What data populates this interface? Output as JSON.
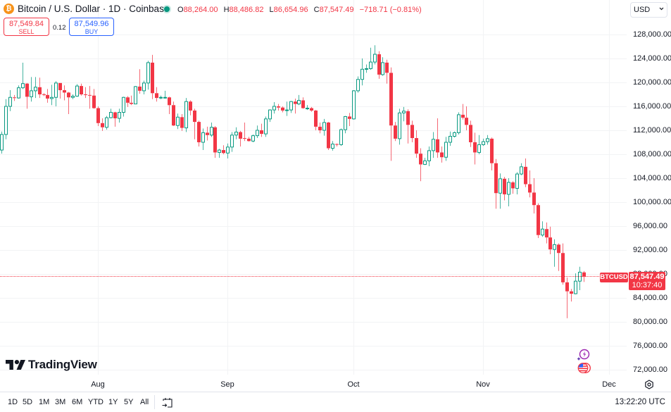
{
  "header": {
    "symbol_icon": "bitcoin-icon",
    "symbol_glyph": "₿",
    "title": "Bitcoin / U.S. Dollar · 1D · Coinbase",
    "market_status_icon": "market-open-dot-icon",
    "ohlc": {
      "o_label": "O",
      "o": "88,264.00",
      "h_label": "H",
      "h": "88,486.82",
      "l_label": "L",
      "l": "86,654.96",
      "c_label": "C",
      "c": "87,547.49",
      "change": "−718.71 (−0.81%)"
    }
  },
  "trade": {
    "sell_price": "87,549.84",
    "sell_label": "SELL",
    "spread": "0.12",
    "buy_price": "87,549.96",
    "buy_label": "BUY"
  },
  "currency": {
    "selected": "USD",
    "chevron": "⌄"
  },
  "price_axis": {
    "labels": [
      "128,000.00",
      "124,000.00",
      "120,000.00",
      "116,000.00",
      "112,000.00",
      "108,000.00",
      "104,000.00",
      "100,000.00",
      "96,000.00",
      "92,000.00",
      "88,000.00",
      "84,000.00",
      "80,000.00",
      "76,000.00",
      "72,000.00"
    ]
  },
  "last_price": {
    "symbol_tag": "BTCUSD",
    "price": "87,547.49",
    "countdown": "10:37:40"
  },
  "time_axis": {
    "labels": [
      "Aug",
      "Sep",
      "Oct",
      "Nov",
      "Dec"
    ],
    "settings_icon": "gear-icon"
  },
  "logo": {
    "text": "TradingView"
  },
  "overlay_icons": [
    "lightning-icon",
    "us-flag-icon"
  ],
  "bottom_toolbar": {
    "ranges": [
      "1D",
      "5D",
      "1M",
      "3M",
      "6M",
      "YTD",
      "1Y",
      "5Y",
      "All"
    ],
    "goto_icon": "calendar-goto-icon",
    "clock": "13:22:20 UTC"
  },
  "colors": {
    "up": "#089981",
    "down": "#F23645",
    "buy": "#2962FF",
    "btc_orange": "#F7931A",
    "grid": "#F2F3F5"
  },
  "chart_data": {
    "type": "bar",
    "chart_style": "candlestick",
    "title": "Bitcoin / U.S. Dollar · 1D · Coinbase",
    "xlabel": "",
    "ylabel": "",
    "ylim": [
      71176,
      133765
    ],
    "grid": true,
    "legend": "none",
    "y_ticks": [
      128000,
      124000,
      120000,
      116000,
      112000,
      108000,
      104000,
      100000,
      96000,
      92000,
      88000,
      84000,
      80000,
      76000,
      72000
    ],
    "x_ticks": [
      {
        "label": "Aug",
        "index": 23
      },
      {
        "label": "Sep",
        "index": 54
      },
      {
        "label": "Oct",
        "index": 84
      },
      {
        "label": "Nov",
        "index": 115
      },
      {
        "label": "Dec",
        "index": 145
      }
    ],
    "last_price": 87547.49,
    "columns": [
      "date",
      "open",
      "high",
      "low",
      "close"
    ],
    "candles": [
      [
        "Jul 9",
        108700,
        111800,
        108100,
        111300
      ],
      [
        "Jul 10",
        111300,
        117200,
        110500,
        116000
      ],
      [
        "Jul 11",
        116000,
        118700,
        115200,
        117500
      ],
      [
        "Jul 12",
        117500,
        117900,
        116900,
        117400
      ],
      [
        "Jul 13",
        117400,
        119500,
        117300,
        119100
      ],
      [
        "Jul 14",
        119100,
        123300,
        118900,
        119800
      ],
      [
        "Jul 15",
        119800,
        119900,
        115600,
        117600
      ],
      [
        "Jul 16",
        117600,
        120900,
        116800,
        118600
      ],
      [
        "Jul 17",
        118600,
        120900,
        117400,
        119200
      ],
      [
        "Jul 18",
        119200,
        120800,
        117400,
        118000
      ],
      [
        "Jul 19",
        118000,
        118200,
        117700,
        117900
      ],
      [
        "Jul 20",
        117900,
        118900,
        116600,
        117300
      ],
      [
        "Jul 21",
        117300,
        119600,
        116200,
        117500
      ],
      [
        "Jul 22",
        117500,
        120200,
        116000,
        119900
      ],
      [
        "Jul 23",
        119900,
        119900,
        117300,
        118700
      ],
      [
        "Jul 24",
        118700,
        119500,
        117000,
        118300
      ],
      [
        "Jul 25",
        118300,
        118400,
        114700,
        117500
      ],
      [
        "Jul 26",
        117500,
        118000,
        117200,
        117700
      ],
      [
        "Jul 27",
        117700,
        119700,
        117600,
        119400
      ],
      [
        "Jul 28",
        119400,
        119800,
        117800,
        118000
      ],
      [
        "Jul 29",
        118000,
        119200,
        117400,
        117900
      ],
      [
        "Jul 30",
        117900,
        119400,
        115600,
        117800
      ],
      [
        "Jul 31",
        117800,
        118900,
        115600,
        115700
      ],
      [
        "Aug 1",
        115700,
        116000,
        112700,
        113200
      ],
      [
        "Aug 2",
        113200,
        114000,
        111900,
        112500
      ],
      [
        "Aug 3",
        112500,
        114400,
        112100,
        114100
      ],
      [
        "Aug 4",
        114100,
        115600,
        114000,
        115000
      ],
      [
        "Aug 5",
        115000,
        115100,
        112600,
        114000
      ],
      [
        "Aug 6",
        114000,
        115600,
        113300,
        115000
      ],
      [
        "Aug 7",
        115000,
        117600,
        114300,
        117500
      ],
      [
        "Aug 8",
        117500,
        117700,
        115900,
        116600
      ],
      [
        "Aug 9",
        116600,
        117800,
        116200,
        116400
      ],
      [
        "Aug 10",
        116400,
        119400,
        116400,
        119300
      ],
      [
        "Aug 11",
        119300,
        122200,
        118100,
        118600
      ],
      [
        "Aug 12",
        118600,
        120300,
        118000,
        119900
      ],
      [
        "Aug 13",
        119900,
        123600,
        118800,
        123300
      ],
      [
        "Aug 14",
        123300,
        124600,
        117200,
        118200
      ],
      [
        "Aug 15",
        118200,
        119200,
        116800,
        117400
      ],
      [
        "Aug 16",
        117400,
        117800,
        117200,
        117500
      ],
      [
        "Aug 17",
        117400,
        118600,
        117300,
        117500
      ],
      [
        "Aug 18",
        117500,
        117600,
        114700,
        116200
      ],
      [
        "Aug 19",
        116200,
        116800,
        112700,
        112800
      ],
      [
        "Aug 20",
        112800,
        114800,
        112200,
        114200
      ],
      [
        "Aug 21",
        114200,
        114700,
        111900,
        112400
      ],
      [
        "Aug 22",
        112400,
        117400,
        111700,
        116800
      ],
      [
        "Aug 23",
        116800,
        117000,
        114500,
        115300
      ],
      [
        "Aug 24",
        115300,
        115600,
        110500,
        113400
      ],
      [
        "Aug 25",
        113400,
        113600,
        109300,
        110000
      ],
      [
        "Aug 26",
        110000,
        112300,
        108700,
        111600
      ],
      [
        "Aug 27",
        111600,
        112600,
        110300,
        111200
      ],
      [
        "Aug 28",
        111200,
        113300,
        110900,
        112500
      ],
      [
        "Aug 29",
        112500,
        112700,
        107400,
        108300
      ],
      [
        "Aug 30",
        108300,
        108900,
        107400,
        108700
      ],
      [
        "Aug 31",
        108700,
        109500,
        108000,
        108200
      ],
      [
        "Sep 1",
        108200,
        109800,
        107300,
        109200
      ],
      [
        "Sep 2",
        109200,
        111700,
        108400,
        111200
      ],
      [
        "Sep 3",
        111200,
        112500,
        110500,
        111700
      ],
      [
        "Sep 4",
        111700,
        111900,
        109300,
        110600
      ],
      [
        "Sep 5",
        110700,
        113300,
        110200,
        110600
      ],
      [
        "Sep 6",
        110600,
        110900,
        110100,
        110200
      ],
      [
        "Sep 7",
        110200,
        111300,
        110000,
        111100
      ],
      [
        "Sep 8",
        111100,
        112800,
        110700,
        112000
      ],
      [
        "Sep 9",
        112000,
        113100,
        110900,
        111400
      ],
      [
        "Sep 10",
        111400,
        114300,
        110900,
        113900
      ],
      [
        "Sep 11",
        113900,
        115500,
        113400,
        115400
      ],
      [
        "Sep 12",
        115400,
        116700,
        114800,
        116000
      ],
      [
        "Sep 13",
        116000,
        116400,
        115300,
        115800
      ],
      [
        "Sep 14",
        115800,
        116000,
        115000,
        115300
      ],
      [
        "Sep 15",
        115300,
        116800,
        114400,
        115400
      ],
      [
        "Sep 16",
        115400,
        116900,
        114900,
        116800
      ],
      [
        "Sep 17",
        116800,
        117300,
        114800,
        116400
      ],
      [
        "Sep 18",
        116400,
        117900,
        116200,
        117000
      ],
      [
        "Sep 19",
        117000,
        117500,
        115600,
        115700
      ],
      [
        "Sep 20",
        115700,
        116200,
        115400,
        115700
      ],
      [
        "Sep 21",
        115700,
        115900,
        115100,
        115300
      ],
      [
        "Sep 22",
        115300,
        115400,
        112000,
        112600
      ],
      [
        "Sep 23",
        112600,
        113300,
        111500,
        112000
      ],
      [
        "Sep 24",
        112000,
        113900,
        111100,
        113300
      ],
      [
        "Sep 25",
        113300,
        113400,
        108700,
        109000
      ],
      [
        "Sep 26",
        109000,
        110200,
        108600,
        109700
      ],
      [
        "Sep 27",
        109700,
        109800,
        109300,
        109600
      ],
      [
        "Sep 28",
        109600,
        112300,
        109400,
        112100
      ],
      [
        "Sep 29",
        112100,
        114400,
        111500,
        114300
      ],
      [
        "Sep 30",
        114300,
        114900,
        112700,
        113900
      ],
      [
        "Oct 1",
        113900,
        118700,
        113800,
        118600
      ],
      [
        "Oct 2",
        118600,
        121000,
        118300,
        120500
      ],
      [
        "Oct 3",
        120500,
        124000,
        119500,
        122200
      ],
      [
        "Oct 4",
        122200,
        123000,
        121600,
        122300
      ],
      [
        "Oct 5",
        122300,
        125800,
        122100,
        123400
      ],
      [
        "Oct 6",
        123400,
        126200,
        123000,
        124700
      ],
      [
        "Oct 7",
        124700,
        125200,
        120600,
        121300
      ],
      [
        "Oct 8",
        121300,
        124200,
        121100,
        123300
      ],
      [
        "Oct 9",
        123300,
        123800,
        119800,
        121600
      ],
      [
        "Oct 10",
        121600,
        122500,
        106900,
        112800
      ],
      [
        "Oct 11",
        112800,
        113400,
        110200,
        110600
      ],
      [
        "Oct 12",
        110600,
        115600,
        109600,
        114900
      ],
      [
        "Oct 13",
        114900,
        115900,
        113500,
        115200
      ],
      [
        "Oct 14",
        115200,
        115500,
        109800,
        112900
      ],
      [
        "Oct 15",
        112900,
        113600,
        110000,
        110700
      ],
      [
        "Oct 16",
        110700,
        112000,
        107400,
        108100
      ],
      [
        "Oct 17",
        108100,
        109000,
        103500,
        106300
      ],
      [
        "Oct 18",
        106300,
        107400,
        106200,
        106900
      ],
      [
        "Oct 19",
        106900,
        109300,
        106000,
        108600
      ],
      [
        "Oct 20",
        108600,
        111700,
        107400,
        110500
      ],
      [
        "Oct 21",
        110500,
        114000,
        107400,
        108300
      ],
      [
        "Oct 22",
        108300,
        109300,
        106600,
        107500
      ],
      [
        "Oct 23",
        107500,
        110900,
        106900,
        110000
      ],
      [
        "Oct 24",
        110000,
        111800,
        109400,
        111000
      ],
      [
        "Oct 25",
        111000,
        111800,
        110800,
        111600
      ],
      [
        "Oct 26",
        111600,
        115000,
        111300,
        114600
      ],
      [
        "Oct 27",
        114600,
        116400,
        113800,
        114100
      ],
      [
        "Oct 28",
        114100,
        116000,
        112000,
        112900
      ],
      [
        "Oct 29",
        112900,
        113600,
        109200,
        110000
      ],
      [
        "Oct 30",
        110000,
        111600,
        106300,
        108300
      ],
      [
        "Oct 31",
        108300,
        111200,
        108000,
        109600
      ],
      [
        "Nov 1",
        109600,
        110600,
        109400,
        110100
      ],
      [
        "Nov 2",
        110100,
        111200,
        109600,
        110600
      ],
      [
        "Nov 3",
        110600,
        110800,
        105300,
        106500
      ],
      [
        "Nov 4",
        106500,
        107200,
        98900,
        101500
      ],
      [
        "Nov 5",
        101500,
        104800,
        98900,
        103900
      ],
      [
        "Nov 6",
        103900,
        104200,
        100300,
        101300
      ],
      [
        "Nov 7",
        101300,
        104000,
        99300,
        103300
      ],
      [
        "Nov 8",
        103300,
        103500,
        101400,
        102300
      ],
      [
        "Nov 9",
        102300,
        105000,
        101300,
        104700
      ],
      [
        "Nov 10",
        104700,
        106500,
        104500,
        105900
      ],
      [
        "Nov 11",
        105900,
        107300,
        102500,
        103000
      ],
      [
        "Nov 12",
        103000,
        105300,
        100800,
        101600
      ],
      [
        "Nov 13",
        101600,
        104000,
        98100,
        99500
      ],
      [
        "Nov 14",
        99500,
        99800,
        94000,
        94500
      ],
      [
        "Nov 15",
        94500,
        96800,
        94200,
        95500
      ],
      [
        "Nov 16",
        95500,
        96600,
        93100,
        94100
      ],
      [
        "Nov 17",
        94100,
        95900,
        91300,
        92100
      ],
      [
        "Nov 18",
        92100,
        93800,
        89200,
        92900
      ],
      [
        "Nov 19",
        92900,
        93100,
        88500,
        91500
      ],
      [
        "Nov 20",
        91500,
        93100,
        86200,
        86600
      ],
      [
        "Nov 21",
        86600,
        87400,
        80600,
        85100
      ],
      [
        "Nov 22",
        85100,
        85500,
        83400,
        84700
      ],
      [
        "Nov 23",
        84700,
        88100,
        84600,
        86800
      ],
      [
        "Nov 24",
        86800,
        89200,
        85300,
        88300
      ],
      [
        "Nov 25",
        88264,
        88486.82,
        86654.96,
        87547.49
      ]
    ]
  }
}
